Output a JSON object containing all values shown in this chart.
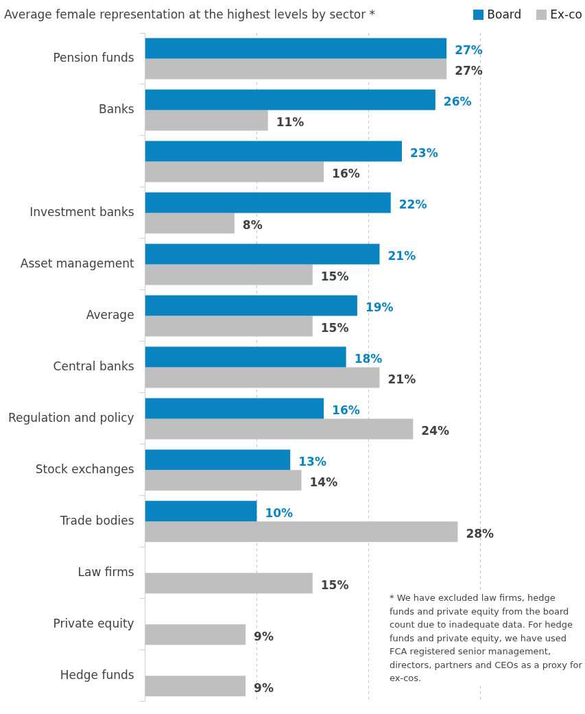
{
  "chart_data": {
    "type": "bar",
    "orientation": "horizontal",
    "title": "Average female representation at the highest levels by sector *",
    "categories": [
      "Pension funds",
      "Banks",
      null,
      "Investment banks",
      "Asset management",
      "Average",
      "Central banks",
      "Regulation and policy",
      "Stock exchanges",
      "Trade bodies",
      "Law firms",
      "Private equity",
      "Hedge funds"
    ],
    "series": [
      {
        "name": "Board",
        "color": "#0a84c0",
        "values": [
          27,
          26,
          23,
          22,
          21,
          19,
          18,
          16,
          13,
          10,
          null,
          null,
          null
        ],
        "value_labels": [
          "27%",
          "26%",
          "23%",
          "22%",
          "21%",
          "19%",
          "18%",
          "16%",
          "13%",
          "10%",
          null,
          null,
          null
        ]
      },
      {
        "name": "Ex-co",
        "color": "#bfbfbf",
        "values": [
          27,
          11,
          16,
          8,
          15,
          15,
          21,
          24,
          14,
          28,
          15,
          9,
          9
        ],
        "value_labels": [
          "27%",
          "11%",
          "16%",
          "8%",
          "15%",
          "15%",
          "21%",
          "24%",
          "14%",
          "28%",
          "15%",
          "9%",
          "9%"
        ]
      }
    ],
    "xlim": [
      0,
      39.4
    ],
    "xticks": [
      {
        "value": 0,
        "label": null
      },
      {
        "value": 10,
        "label": null
      },
      {
        "value": 20,
        "label": null
      },
      {
        "value": 30,
        "label": null
      }
    ],
    "grid": "x",
    "tick_labels": "y",
    "legend": "top right",
    "annotations": [
      "* We have excluded law firms, hedge funds and private equity from the board count due to inadequate data. For hedge funds and private equity, we have used FCA registered senior management, directors, partners and CEOs as a proxy for ex-cos."
    ]
  }
}
